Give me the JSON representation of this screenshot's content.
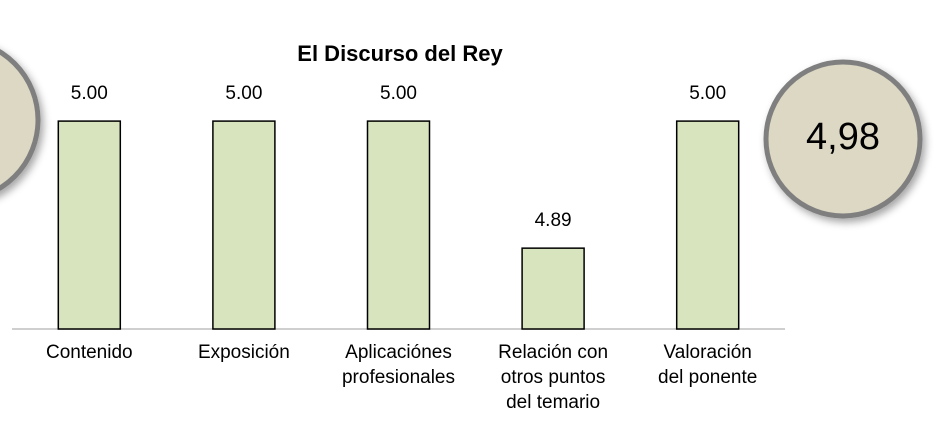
{
  "chart_data": {
    "type": "bar",
    "title": "El Discurso del Rey",
    "categories": [
      "Contenido",
      "Exposición",
      "Aplicaciónes\nprofesionales",
      "Relación con\notros puntos\ndel temario",
      "Valoración\ndel ponente"
    ],
    "values": [
      5.0,
      5.0,
      5.0,
      4.89,
      5.0
    ],
    "value_labels": [
      "5.00",
      "5.00",
      "5.00",
      "4.89",
      "5.00"
    ],
    "color": "#d7e4bd",
    "ylim": [
      4.82,
      5.02
    ],
    "annotation": "4,98"
  }
}
